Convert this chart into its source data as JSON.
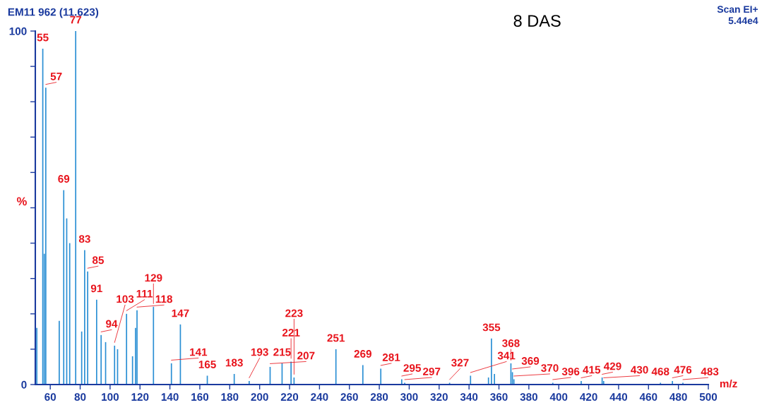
{
  "chart_data": {
    "type": "bar",
    "title": "8 DAS",
    "xlabel": "m/z",
    "ylabel": "%",
    "annotations": [
      "EM11 962 (11.623)",
      "Scan EI+",
      "5.44e4",
      {
        "text": "55",
        "x": 55,
        "y": 95
      },
      {
        "text": "57",
        "x": 57,
        "y": 84
      },
      {
        "text": "69",
        "x": 69,
        "y": 55
      },
      {
        "text": "77",
        "x": 77,
        "y": 100
      },
      {
        "text": "83",
        "x": 83,
        "y": 38
      },
      {
        "text": "85",
        "x": 85,
        "y": 32
      },
      {
        "text": "91",
        "x": 91,
        "y": 24
      },
      {
        "text": "94",
        "x": 94,
        "y": 14
      },
      {
        "text": "103",
        "x": 103,
        "y": 11
      },
      {
        "text": "111",
        "x": 111,
        "y": 20
      },
      {
        "text": "118",
        "x": 118,
        "y": 21
      },
      {
        "text": "129",
        "x": 129,
        "y": 22
      },
      {
        "text": "141",
        "x": 141,
        "y": 6
      },
      {
        "text": "147",
        "x": 147,
        "y": 17
      },
      {
        "text": "165",
        "x": 165,
        "y": 2.5
      },
      {
        "text": "183",
        "x": 183,
        "y": 3
      },
      {
        "text": "193",
        "x": 193,
        "y": 1
      },
      {
        "text": "207",
        "x": 207,
        "y": 5
      },
      {
        "text": "215",
        "x": 215,
        "y": 6
      },
      {
        "text": "221",
        "x": 221,
        "y": 6.5
      },
      {
        "text": "223",
        "x": 223,
        "y": 2
      },
      {
        "text": "251",
        "x": 251,
        "y": 10
      },
      {
        "text": "269",
        "x": 269,
        "y": 5.5
      },
      {
        "text": "281",
        "x": 281,
        "y": 4.5
      },
      {
        "text": "295",
        "x": 295,
        "y": 1.5
      },
      {
        "text": "297",
        "x": 297,
        "y": 0.5
      },
      {
        "text": "327",
        "x": 327,
        "y": 0.5
      },
      {
        "text": "341",
        "x": 341,
        "y": 2.5
      },
      {
        "text": "355",
        "x": 355,
        "y": 13
      },
      {
        "text": "368",
        "x": 368,
        "y": 6
      },
      {
        "text": "369",
        "x": 369,
        "y": 3.5
      },
      {
        "text": "370",
        "x": 370,
        "y": 1.5
      },
      {
        "text": "396",
        "x": 396,
        "y": 0.5
      },
      {
        "text": "415",
        "x": 415,
        "y": 1
      },
      {
        "text": "429",
        "x": 429,
        "y": 2
      },
      {
        "text": "430",
        "x": 430,
        "y": 1
      },
      {
        "text": "468",
        "x": 468,
        "y": 0.5
      },
      {
        "text": "476",
        "x": 476,
        "y": 1
      },
      {
        "text": "483",
        "x": 483,
        "y": 0.5
      }
    ],
    "x": [
      51,
      55,
      56,
      57,
      66,
      69,
      71,
      73,
      77,
      81,
      83,
      85,
      91,
      94,
      97,
      103,
      105,
      111,
      115,
      117,
      118,
      129,
      141,
      147,
      165,
      183,
      193,
      207,
      215,
      221,
      223,
      251,
      269,
      281,
      295,
      297,
      327,
      341,
      353,
      355,
      357,
      368,
      369,
      370,
      396,
      415,
      429,
      430,
      468,
      476,
      483
    ],
    "values": [
      16,
      95,
      37,
      84,
      18,
      55,
      47,
      40,
      100,
      15,
      38,
      32,
      24,
      14,
      12,
      11,
      10,
      20,
      8,
      16,
      21,
      22,
      6,
      17,
      2.5,
      3,
      1,
      5,
      6,
      6.5,
      2,
      10,
      5.5,
      4.5,
      1.5,
      0.5,
      0.5,
      2.5,
      2,
      13,
      3,
      6,
      3.5,
      1.5,
      0.5,
      1,
      2,
      1,
      0.5,
      1,
      0.5
    ],
    "color": "#2a8fd4",
    "xlim": [
      50,
      500
    ],
    "xticks": [
      60,
      80,
      100,
      120,
      140,
      160,
      180,
      200,
      220,
      240,
      260,
      280,
      300,
      320,
      340,
      360,
      380,
      400,
      420,
      440,
      460,
      480,
      500
    ],
    "ylim": [
      0,
      100
    ],
    "yticks": [
      0,
      {
        "value": 10,
        "label": null
      },
      {
        "value": 20,
        "label": null
      },
      {
        "value": 30,
        "label": null
      },
      {
        "value": 40,
        "label": null
      },
      {
        "value": 50,
        "label": null
      },
      {
        "value": 60,
        "label": null
      },
      {
        "value": 70,
        "label": null
      },
      {
        "value": 80,
        "label": null
      },
      {
        "value": 90,
        "label": null
      },
      100
    ],
    "grid": false,
    "legend": false
  }
}
